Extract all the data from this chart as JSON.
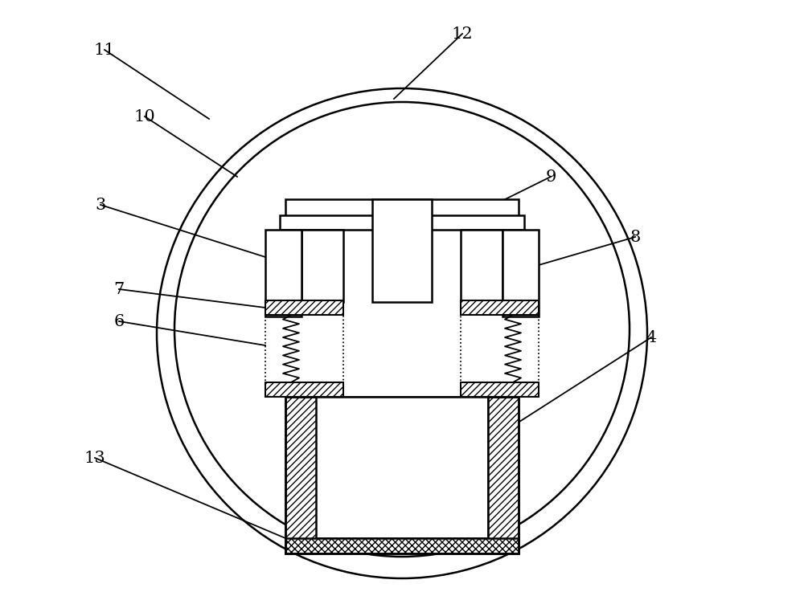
{
  "bg_color": "#ffffff",
  "line_color": "#000000",
  "fig_width": 10.0,
  "fig_height": 7.37,
  "dpi": 100,
  "label_fontsize": 15
}
